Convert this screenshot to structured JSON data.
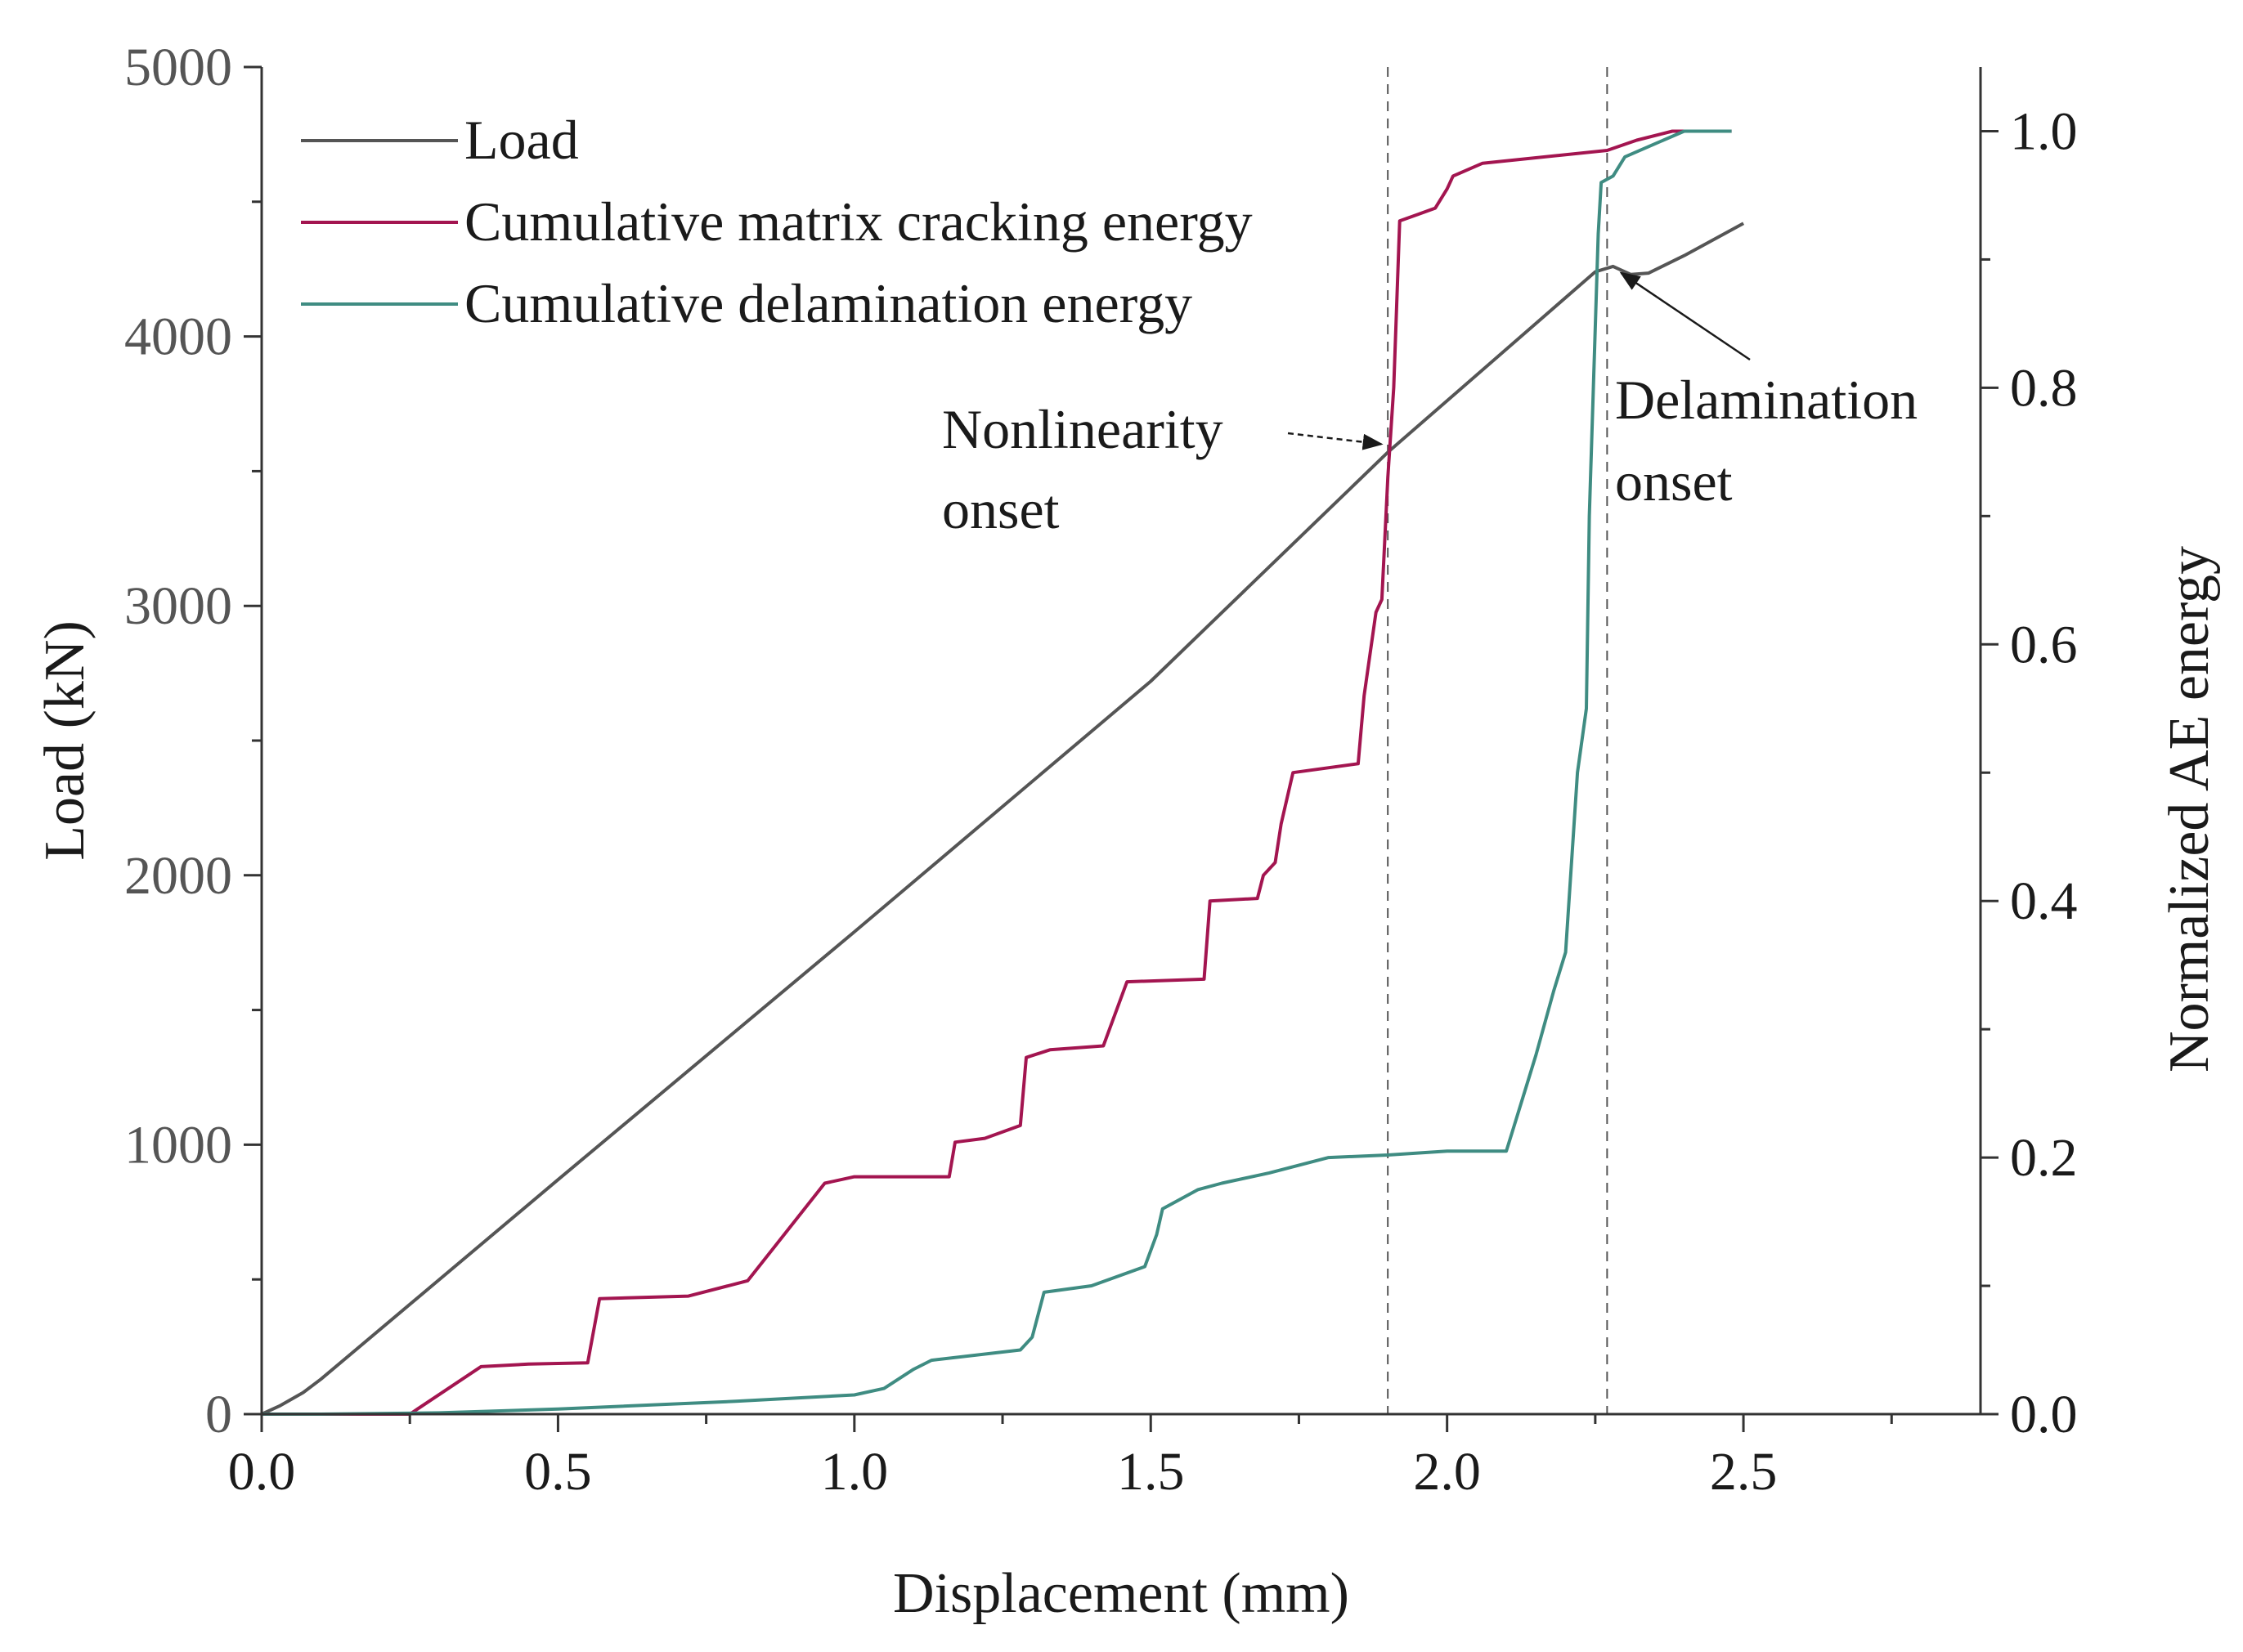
{
  "chart_data": {
    "type": "line",
    "x_axis": {
      "label": "Displacement (mm)",
      "range": [
        0,
        2.9
      ],
      "ticks": [
        0.0,
        0.5,
        1.0,
        1.5,
        2.0,
        2.5
      ],
      "tick_labels": [
        "0.0",
        "0.5",
        "1.0",
        "1.5",
        "2.0",
        "2.5"
      ]
    },
    "y_axis_left": {
      "label": "Load (kN)",
      "range": [
        0,
        5000
      ],
      "ticks": [
        0,
        1000,
        2000,
        3000,
        4000,
        5000
      ],
      "tick_labels": [
        "0",
        "1000",
        "2000",
        "3000",
        "4000",
        "5000"
      ]
    },
    "y_axis_right": {
      "label": "Normalized AE energy",
      "range": [
        0,
        1.05
      ],
      "ticks": [
        0.0,
        0.2,
        0.4,
        0.6,
        0.8,
        1.0
      ],
      "tick_labels": [
        "0.0",
        "0.2",
        "0.4",
        "0.6",
        "0.8",
        "1.0"
      ]
    },
    "series": [
      {
        "name": "Load",
        "axis": "left",
        "color": "#555555",
        "x": [
          0,
          0.03,
          0.07,
          0.1,
          0.5,
          1.0,
          1.5,
          1.9,
          2.25,
          2.28,
          2.31,
          2.34,
          2.4,
          2.5
        ],
        "y": [
          0,
          30,
          80,
          130,
          870,
          1790,
          2720,
          3570,
          4240,
          4260,
          4230,
          4235,
          4300,
          4420
        ]
      },
      {
        "name": "Cumulative matrix cracking energy",
        "axis": "right",
        "color": "#a31550",
        "x": [
          0,
          0.25,
          0.37,
          0.45,
          0.55,
          0.57,
          0.72,
          0.82,
          0.95,
          1.0,
          1.16,
          1.17,
          1.22,
          1.28,
          1.29,
          1.33,
          1.42,
          1.46,
          1.59,
          1.6,
          1.68,
          1.69,
          1.71,
          1.72,
          1.74,
          1.85,
          1.86,
          1.88,
          1.89,
          1.9,
          1.91,
          1.92,
          1.95,
          1.98,
          2.0,
          2.01,
          2.06,
          2.27,
          2.32,
          2.38,
          2.43,
          2.48
        ],
        "y": [
          0,
          0,
          0.037,
          0.039,
          0.04,
          0.09,
          0.092,
          0.104,
          0.18,
          0.185,
          0.185,
          0.212,
          0.215,
          0.225,
          0.278,
          0.284,
          0.287,
          0.337,
          0.339,
          0.4,
          0.402,
          0.42,
          0.43,
          0.46,
          0.5,
          0.507,
          0.56,
          0.625,
          0.635,
          0.73,
          0.8,
          0.93,
          0.935,
          0.94,
          0.955,
          0.965,
          0.975,
          0.985,
          0.993,
          1.0,
          1.0,
          1.0
        ]
      },
      {
        "name": "Cumulative delamination energy",
        "axis": "right",
        "color": "#3f8c82",
        "x": [
          0,
          0.1,
          0.3,
          0.5,
          0.6,
          0.8,
          1.0,
          1.05,
          1.1,
          1.13,
          1.28,
          1.3,
          1.32,
          1.4,
          1.49,
          1.51,
          1.52,
          1.58,
          1.62,
          1.7,
          1.8,
          1.9,
          2.0,
          2.1,
          2.11,
          2.13,
          2.15,
          2.18,
          2.2,
          2.22,
          2.235,
          2.24,
          2.255,
          2.26,
          2.28,
          2.3,
          2.35,
          2.4,
          2.48
        ],
        "y": [
          0,
          0,
          0.001,
          0.004,
          0.006,
          0.01,
          0.015,
          0.02,
          0.035,
          0.042,
          0.05,
          0.06,
          0.095,
          0.1,
          0.115,
          0.14,
          0.16,
          0.175,
          0.18,
          0.188,
          0.2,
          0.202,
          0.205,
          0.205,
          0.22,
          0.25,
          0.28,
          0.33,
          0.36,
          0.5,
          0.55,
          0.7,
          0.92,
          0.96,
          0.965,
          0.98,
          0.99,
          1.0,
          1.0
        ]
      }
    ],
    "reference_lines_x": [
      1.9,
      2.27
    ],
    "legend": {
      "position": "top-left",
      "entries": [
        "Load",
        "Cumulative matrix cracking energy",
        "Cumulative delamination energy"
      ]
    },
    "annotations": [
      {
        "lines": [
          "Nonlinearity",
          "onset"
        ],
        "target": {
          "x": 1.9,
          "y": 3570,
          "axis": "left"
        }
      },
      {
        "lines": [
          "Delamination",
          "onset"
        ],
        "target": {
          "x": 2.28,
          "y": 4260,
          "axis": "left"
        }
      }
    ]
  }
}
